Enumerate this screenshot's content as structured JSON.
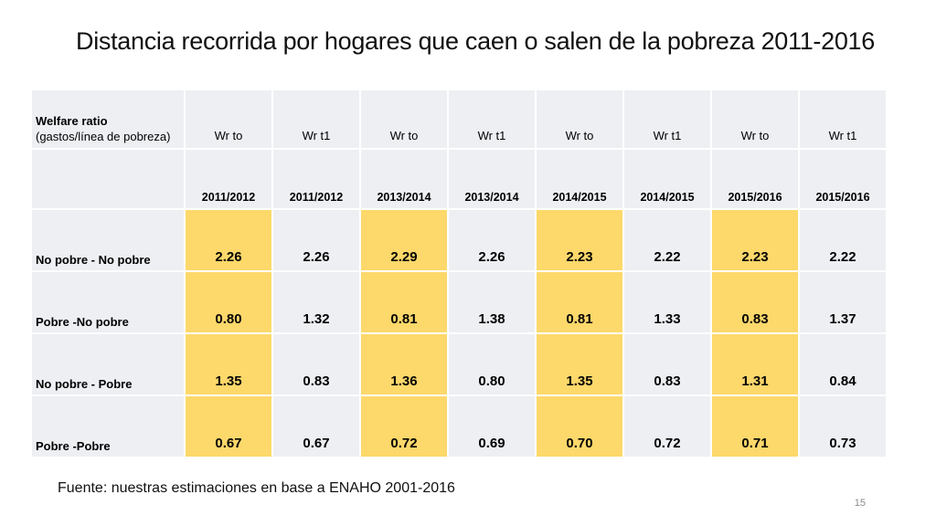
{
  "title": "Distancia recorrida por hogares que caen o salen de la pobreza 2011-2016",
  "table": {
    "corner_label_bold": "Welfare ratio",
    "corner_label_rest": "(gastos/línea de pobreza)",
    "measure_headers": [
      "Wr to",
      "Wr t1",
      "Wr to",
      "Wr t1",
      "Wr to",
      "Wr t1",
      "Wr to",
      "Wr t1"
    ],
    "period_headers": [
      "2011/2012",
      "2011/2012",
      "2013/2014",
      "2013/2014",
      "2014/2015",
      "2014/2015",
      "2015/2016",
      "2015/2016"
    ],
    "rows": [
      {
        "label": "No pobre - No pobre",
        "values": [
          "2.26",
          "2.26",
          "2.29",
          "2.26",
          "2.23",
          "2.22",
          "2.23",
          "2.22"
        ]
      },
      {
        "label": "Pobre -No pobre",
        "values": [
          "0.80",
          "1.32",
          "0.81",
          "1.38",
          "0.81",
          "1.33",
          "0.83",
          "1.37"
        ]
      },
      {
        "label": "No pobre - Pobre",
        "values": [
          "1.35",
          "0.83",
          "1.36",
          "0.80",
          "1.35",
          "0.83",
          "1.31",
          "0.84"
        ]
      },
      {
        "label": "Pobre -Pobre",
        "values": [
          "0.67",
          "0.67",
          "0.72",
          "0.69",
          "0.70",
          "0.72",
          "0.71",
          "0.73"
        ]
      }
    ]
  },
  "source": "Fuente: nuestras estimaciones en base a ENAHO 2001-2016",
  "page_number": "15",
  "colors": {
    "highlight": "#fdd86b",
    "cell_background": "#edeff3"
  }
}
